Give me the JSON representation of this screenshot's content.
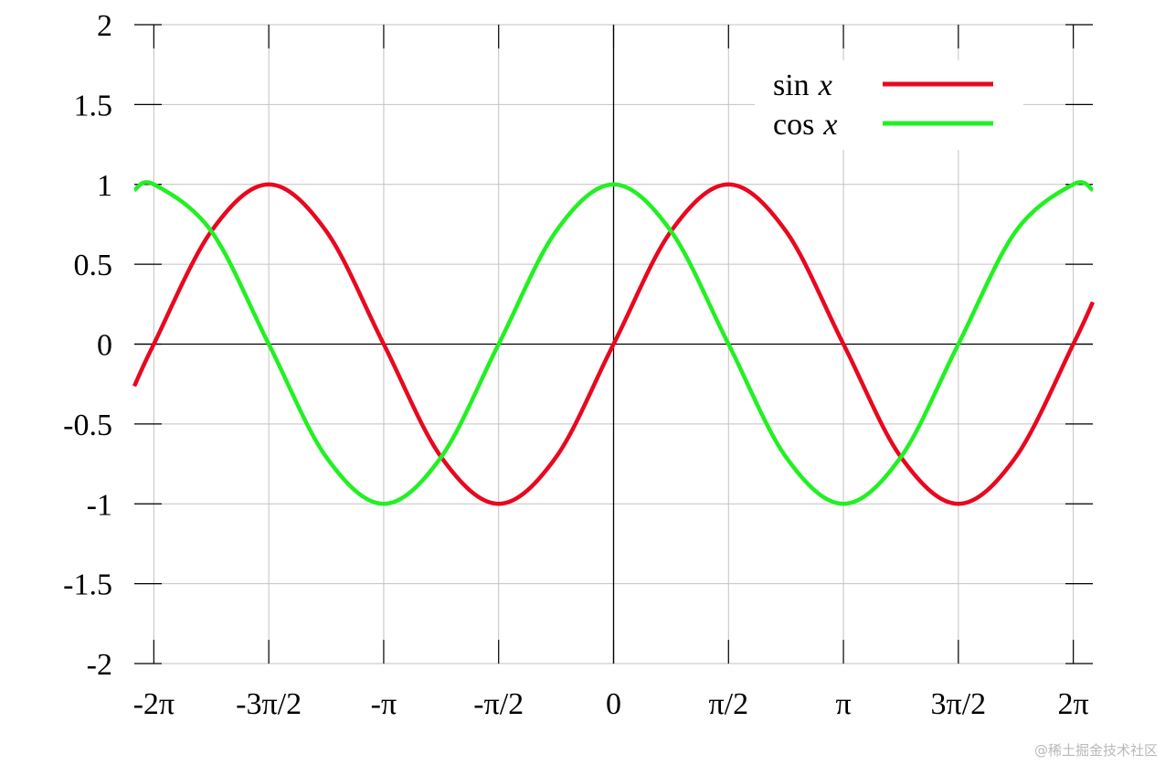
{
  "chart_data": {
    "type": "line",
    "title": "",
    "xlabel": "",
    "ylabel": "",
    "xlim": [
      -6.55,
      6.55
    ],
    "ylim": [
      -2,
      2
    ],
    "grid": true,
    "legend_position": "top-right",
    "x_ticks": [
      {
        "value": -6.2832,
        "label": "-2π"
      },
      {
        "value": -4.7124,
        "label": "-3π/2"
      },
      {
        "value": -3.1416,
        "label": "-π"
      },
      {
        "value": -1.5708,
        "label": "-π/2"
      },
      {
        "value": 0,
        "label": "0"
      },
      {
        "value": 1.5708,
        "label": "π/2"
      },
      {
        "value": 3.1416,
        "label": "π"
      },
      {
        "value": 4.7124,
        "label": "3π/2"
      },
      {
        "value": 6.2832,
        "label": "2π"
      }
    ],
    "y_ticks": [
      {
        "value": 2,
        "label": "2"
      },
      {
        "value": 1.5,
        "label": "1.5"
      },
      {
        "value": 1,
        "label": "1"
      },
      {
        "value": 0.5,
        "label": "0.5"
      },
      {
        "value": 0,
        "label": "0"
      },
      {
        "value": -0.5,
        "label": "-0.5"
      },
      {
        "value": -1,
        "label": "-1"
      },
      {
        "value": -1.5,
        "label": "-1.5"
      },
      {
        "value": -2,
        "label": "-2"
      }
    ],
    "series": [
      {
        "name": "sin x",
        "legend_func": "sin",
        "legend_var": "x",
        "color": "#e8081f",
        "x": [
          -6.55,
          -6.2832,
          -5.4978,
          -4.7124,
          -3.927,
          -3.1416,
          -2.3562,
          -1.5708,
          -0.7854,
          0,
          0.7854,
          1.5708,
          2.3562,
          3.1416,
          3.927,
          4.7124,
          5.4978,
          6.2832,
          6.55
        ],
        "y": [
          -0.263,
          0,
          0.707,
          1,
          0.707,
          0,
          -0.707,
          -1,
          -0.707,
          0,
          0.707,
          1,
          0.707,
          0,
          -0.707,
          -1,
          -0.707,
          0,
          0.263
        ]
      },
      {
        "name": "cos x",
        "legend_func": "cos",
        "legend_var": "x",
        "color": "#22f022",
        "x": [
          -6.55,
          -6.2832,
          -5.4978,
          -4.7124,
          -3.927,
          -3.1416,
          -2.3562,
          -1.5708,
          -0.7854,
          0,
          0.7854,
          1.5708,
          2.3562,
          3.1416,
          3.927,
          4.7124,
          5.4978,
          6.2832,
          6.55
        ],
        "y": [
          0.965,
          1,
          0.707,
          0,
          -0.707,
          -1,
          -0.707,
          0,
          0.707,
          1,
          0.707,
          0,
          -0.707,
          -1,
          -0.707,
          0,
          0.707,
          1,
          0.965
        ]
      }
    ]
  },
  "watermark": "@稀土掘金技术社区"
}
